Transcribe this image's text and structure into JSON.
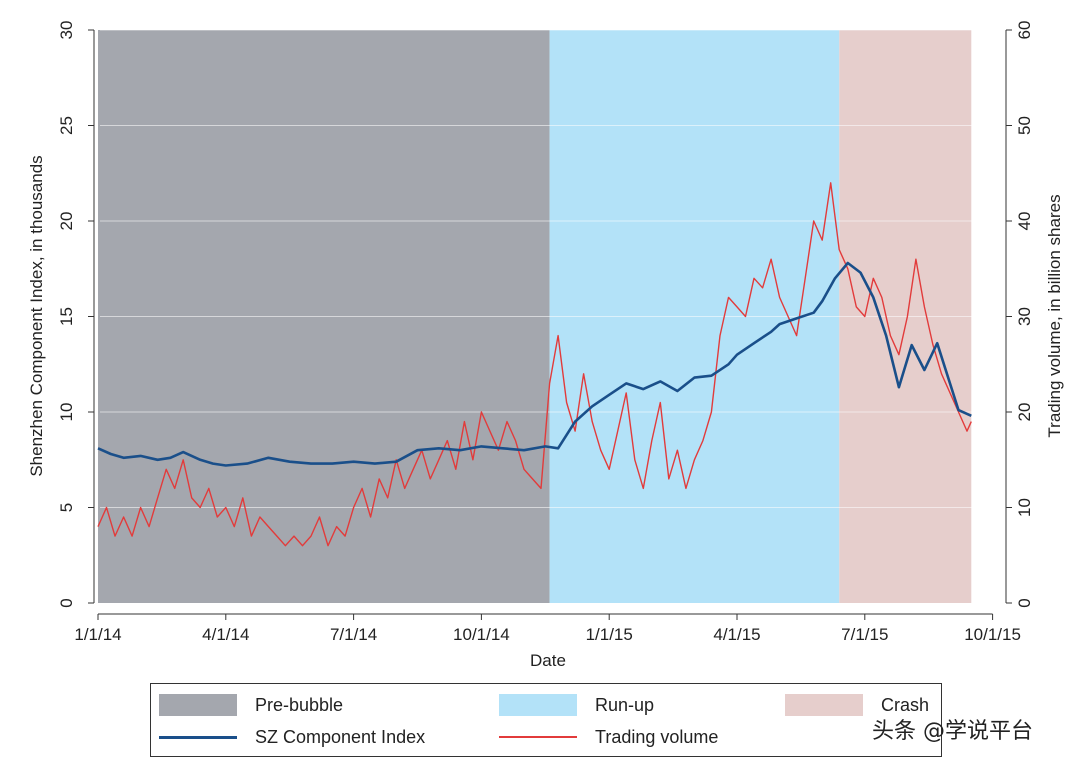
{
  "chart_data": {
    "type": "line",
    "xlabel": "Date",
    "ylabel_left": "Shenzhen Component Index, in thousands",
    "ylabel_right": "Trading volume, in billion shares",
    "x_ticks": [
      "1/1/14",
      "4/1/14",
      "7/1/14",
      "10/1/14",
      "1/1/15",
      "4/1/15",
      "7/1/15",
      "10/1/15"
    ],
    "x_range_months": [
      0,
      21
    ],
    "ylim_left": [
      0,
      30
    ],
    "yticks_left": [
      0,
      5,
      10,
      15,
      20,
      25,
      30
    ],
    "ylim_right": [
      0,
      60
    ],
    "yticks_right": [
      0,
      10,
      20,
      30,
      40,
      50,
      60
    ],
    "periods": [
      {
        "name": "Pre-bubble",
        "start": 0,
        "end": 10.6,
        "color": "#a4a7ae"
      },
      {
        "name": "Run-up",
        "start": 10.6,
        "end": 17.4,
        "color": "#b3e2f8"
      },
      {
        "name": "Crash",
        "start": 17.4,
        "end": 20.5,
        "color": "#e6cecc"
      }
    ],
    "series": [
      {
        "name": "SZ Component Index",
        "axis": "left",
        "color": "#1a4f8a",
        "x": [
          0,
          0.3,
          0.6,
          1.0,
          1.4,
          1.7,
          2.0,
          2.4,
          2.7,
          3.0,
          3.5,
          4.0,
          4.5,
          5.0,
          5.5,
          6.0,
          6.5,
          7.0,
          7.5,
          8.0,
          8.5,
          9.0,
          9.5,
          10.0,
          10.5,
          10.8,
          11.2,
          11.6,
          12.0,
          12.4,
          12.8,
          13.2,
          13.6,
          14.0,
          14.4,
          14.8,
          15.0,
          15.4,
          15.8,
          16.0,
          16.4,
          16.8,
          17.0,
          17.3,
          17.6,
          17.9,
          18.2,
          18.5,
          18.8,
          19.1,
          19.4,
          19.7,
          20.0,
          20.2,
          20.5
        ],
        "values": [
          8.1,
          7.8,
          7.6,
          7.7,
          7.5,
          7.6,
          7.9,
          7.5,
          7.3,
          7.2,
          7.3,
          7.6,
          7.4,
          7.3,
          7.3,
          7.4,
          7.3,
          7.4,
          8.0,
          8.1,
          8.0,
          8.2,
          8.1,
          8.0,
          8.2,
          8.1,
          9.5,
          10.3,
          10.9,
          11.5,
          11.2,
          11.6,
          11.1,
          11.8,
          11.9,
          12.5,
          13.0,
          13.6,
          14.2,
          14.6,
          14.9,
          15.2,
          15.8,
          17.0,
          17.8,
          17.3,
          16.0,
          14.0,
          11.3,
          13.5,
          12.2,
          13.6,
          11.5,
          10.1,
          9.8
        ]
      },
      {
        "name": "Trading volume",
        "axis": "right",
        "color": "#e23b3b",
        "x": [
          0,
          0.2,
          0.4,
          0.6,
          0.8,
          1.0,
          1.2,
          1.4,
          1.6,
          1.8,
          2.0,
          2.2,
          2.4,
          2.6,
          2.8,
          3.0,
          3.2,
          3.4,
          3.6,
          3.8,
          4.0,
          4.2,
          4.4,
          4.6,
          4.8,
          5.0,
          5.2,
          5.4,
          5.6,
          5.8,
          6.0,
          6.2,
          6.4,
          6.6,
          6.8,
          7.0,
          7.2,
          7.4,
          7.6,
          7.8,
          8.0,
          8.2,
          8.4,
          8.6,
          8.8,
          9.0,
          9.2,
          9.4,
          9.6,
          9.8,
          10.0,
          10.2,
          10.4,
          10.6,
          10.8,
          11.0,
          11.2,
          11.4,
          11.6,
          11.8,
          12.0,
          12.2,
          12.4,
          12.6,
          12.8,
          13.0,
          13.2,
          13.4,
          13.6,
          13.8,
          14.0,
          14.2,
          14.4,
          14.6,
          14.8,
          15.0,
          15.2,
          15.4,
          15.6,
          15.8,
          16.0,
          16.2,
          16.4,
          16.6,
          16.8,
          17.0,
          17.2,
          17.4,
          17.6,
          17.8,
          18.0,
          18.2,
          18.4,
          18.6,
          18.8,
          19.0,
          19.2,
          19.4,
          19.6,
          19.8,
          20.0,
          20.2,
          20.4,
          20.5
        ],
        "values": [
          8,
          10,
          7,
          9,
          7,
          10,
          8,
          11,
          14,
          12,
          15,
          11,
          10,
          12,
          9,
          10,
          8,
          11,
          7,
          9,
          8,
          7,
          6,
          7,
          6,
          7,
          9,
          6,
          8,
          7,
          10,
          12,
          9,
          13,
          11,
          15,
          12,
          14,
          16,
          13,
          15,
          17,
          14,
          19,
          15,
          20,
          18,
          16,
          19,
          17,
          14,
          13,
          12,
          23,
          28,
          21,
          18,
          24,
          19,
          16,
          14,
          18,
          22,
          15,
          12,
          17,
          21,
          13,
          16,
          12,
          15,
          17,
          20,
          28,
          32,
          31,
          30,
          34,
          33,
          36,
          32,
          30,
          28,
          34,
          40,
          38,
          44,
          37,
          35,
          31,
          30,
          34,
          32,
          28,
          26,
          30,
          36,
          31,
          27,
          24,
          22,
          20,
          18,
          19
        ]
      }
    ]
  },
  "legend": [
    {
      "label": "Pre-bubble",
      "type": "box",
      "color": "#a4a7ae"
    },
    {
      "label": "Run-up",
      "type": "box",
      "color": "#b3e2f8"
    },
    {
      "label": "Crash",
      "type": "box",
      "color": "#e6cecc"
    },
    {
      "label": "SZ Component Index",
      "type": "line",
      "color": "#1a4f8a"
    },
    {
      "label": "Trading volume",
      "type": "line",
      "color": "#e23b3b"
    }
  ],
  "watermark": "头条 @学说平台"
}
